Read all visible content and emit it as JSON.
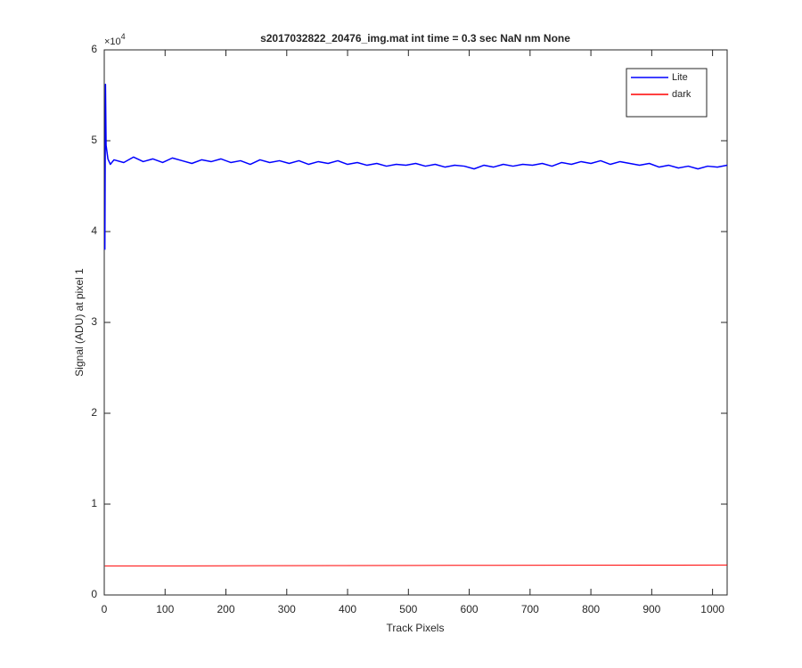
{
  "chart_data": {
    "type": "line",
    "title": "s2017032822_20476_img.mat int time = 0.3 sec  NaN nm None",
    "x_label": "Track Pixels",
    "y_label": "Signal (ADU) at pixel 1",
    "y_multiplier": {
      "base": "×10",
      "exponent": "4"
    },
    "xlim": [
      0,
      1024
    ],
    "xticks": [
      0,
      100,
      200,
      300,
      400,
      500,
      600,
      700,
      800,
      900,
      1000
    ],
    "ylim": [
      0,
      6
    ],
    "yticks": [
      0,
      1,
      2,
      3,
      4,
      5,
      6
    ],
    "grid": false,
    "legend_position": "top-right",
    "series": [
      {
        "name": "Lite",
        "color": "#0000ff",
        "x": [
          1,
          2,
          3,
          6,
          10,
          16,
          32,
          48,
          64,
          80,
          96,
          112,
          128,
          144,
          160,
          176,
          192,
          208,
          224,
          240,
          256,
          272,
          288,
          304,
          320,
          336,
          352,
          368,
          384,
          400,
          416,
          432,
          448,
          464,
          480,
          496,
          512,
          528,
          544,
          560,
          576,
          592,
          608,
          624,
          640,
          656,
          672,
          688,
          704,
          720,
          736,
          752,
          768,
          784,
          800,
          816,
          832,
          848,
          864,
          880,
          896,
          912,
          928,
          944,
          960,
          976,
          992,
          1008,
          1024
        ],
        "values": [
          3.8,
          5.62,
          4.95,
          4.8,
          4.74,
          4.79,
          4.76,
          4.82,
          4.77,
          4.8,
          4.76,
          4.81,
          4.78,
          4.75,
          4.79,
          4.77,
          4.8,
          4.76,
          4.78,
          4.74,
          4.79,
          4.76,
          4.78,
          4.75,
          4.78,
          4.74,
          4.77,
          4.75,
          4.78,
          4.74,
          4.76,
          4.73,
          4.75,
          4.72,
          4.74,
          4.73,
          4.75,
          4.72,
          4.74,
          4.71,
          4.73,
          4.72,
          4.69,
          4.73,
          4.71,
          4.74,
          4.72,
          4.74,
          4.73,
          4.75,
          4.72,
          4.76,
          4.74,
          4.77,
          4.75,
          4.78,
          4.74,
          4.77,
          4.75,
          4.73,
          4.75,
          4.71,
          4.73,
          4.7,
          4.72,
          4.69,
          4.72,
          4.71,
          4.73
        ]
      },
      {
        "name": "dark",
        "color": "#ff0000",
        "x": [
          1,
          128,
          256,
          384,
          512,
          640,
          768,
          896,
          1024
        ],
        "values": [
          0.32,
          0.32,
          0.322,
          0.324,
          0.325,
          0.326,
          0.327,
          0.328,
          0.33
        ]
      }
    ]
  }
}
